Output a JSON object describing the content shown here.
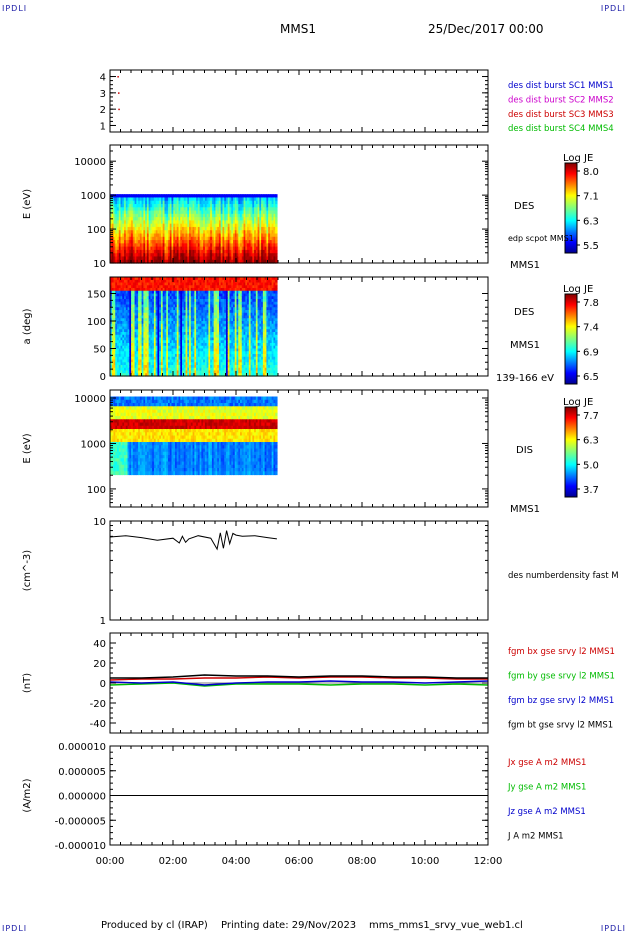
{
  "header": {
    "corner_labels": [
      "IPDLI",
      "IPDLI",
      "IPDLI",
      "IPDLI"
    ],
    "title": "MMS1",
    "date": "25/Dec/2017 00:00"
  },
  "footer": {
    "produced_by": "Produced by cl (IRAP)",
    "printing_date": "Printing date: 29/Nov/2023",
    "file": "mms_mms1_srvy_vue_web1.cl"
  },
  "time_axis": {
    "ticks": [
      "00:00",
      "02:00",
      "04:00",
      "06:00",
      "08:00",
      "10:00",
      "12:00"
    ],
    "range_hours": [
      0,
      12
    ]
  },
  "chart_data": [
    {
      "type": "scatter",
      "panel": "spacecraft",
      "yticks": [
        "1",
        "2",
        "3",
        "4"
      ],
      "ylim": [
        0.6,
        4.4
      ],
      "legend": [
        {
          "label": "des dist burst SC1 MMS1",
          "color": "#0000cc"
        },
        {
          "label": "des dist burst SC2 MMS2",
          "color": "#cc00cc"
        },
        {
          "label": "des dist burst SC3 MMS3",
          "color": "#cc0000"
        },
        {
          "label": "des dist burst SC4 MMS4",
          "color": "#00bb00"
        }
      ],
      "points": [
        {
          "x": 0.25,
          "y": 4
        },
        {
          "x": 0.27,
          "y": 3
        },
        {
          "x": 0.28,
          "y": 2
        }
      ]
    },
    {
      "type": "heatmap",
      "panel": "des-energy",
      "ylabel": "E (eV)",
      "yscale": "log",
      "yticks": [
        "10",
        "100",
        "1000",
        "10000"
      ],
      "ylim": [
        10,
        30000
      ],
      "data_end_hours": 5.3,
      "colorbar": {
        "title": "Log JE",
        "ticks": [
          "8.0",
          "7.1",
          "6.3",
          "5.5"
        ]
      },
      "labels": [
        "DES",
        "edp scpot MMS1",
        "MMS1"
      ]
    },
    {
      "type": "heatmap",
      "panel": "des-pitch",
      "ylabel": "a (deg)",
      "yticks": [
        "0",
        "50",
        "100",
        "150"
      ],
      "ylim": [
        0,
        180
      ],
      "data_end_hours": 5.3,
      "colorbar": {
        "title": "Log JE",
        "ticks": [
          "7.8",
          "7.4",
          "6.9",
          "6.5"
        ]
      },
      "labels": [
        "DES",
        "MMS1",
        "139-166 eV"
      ]
    },
    {
      "type": "heatmap",
      "panel": "dis-energy",
      "ylabel": "E (eV)",
      "yscale": "log",
      "yticks": [
        "100",
        "1000",
        "10000"
      ],
      "ylim": [
        40,
        15000
      ],
      "data_end_hours": 5.3,
      "colorbar": {
        "title": "Log JE",
        "ticks": [
          "7.7",
          "6.3",
          "5.0",
          "3.7"
        ]
      },
      "labels": [
        "DIS",
        "MMS1"
      ]
    },
    {
      "type": "line",
      "panel": "density",
      "ylabel": "(cm^-3)",
      "yscale": "log",
      "yticks": [
        "1",
        "10"
      ],
      "ylim": [
        1,
        10
      ],
      "series": [
        {
          "name": "des numberdensity fast M",
          "color": "#000000",
          "x": [
            0,
            0.5,
            1,
            1.5,
            2,
            2.2,
            2.3,
            2.4,
            2.5,
            2.8,
            3.2,
            3.4,
            3.5,
            3.6,
            3.7,
            3.8,
            3.9,
            4,
            4.2,
            4.6,
            5,
            5.3
          ],
          "values": [
            6.9,
            7.1,
            6.8,
            6.4,
            6.7,
            6.0,
            7.0,
            6.1,
            6.6,
            7.1,
            6.7,
            5.2,
            7.6,
            5.3,
            8.0,
            5.9,
            7.5,
            7.2,
            7.0,
            7.1,
            6.8,
            6.6
          ]
        }
      ]
    },
    {
      "type": "line",
      "panel": "magnetic-field",
      "ylabel": "(nT)",
      "yticks": [
        "-40",
        "-20",
        "0",
        "20",
        "40"
      ],
      "ylim": [
        -50,
        50
      ],
      "series": [
        {
          "name": "fgm bx gse srvy l2 MMS1",
          "color": "#cc0000",
          "x": [
            0,
            1,
            2,
            3,
            4,
            5,
            6,
            7,
            8,
            9,
            10,
            11,
            12
          ],
          "values": [
            3,
            4,
            4,
            5,
            5,
            6,
            5,
            6,
            6,
            5,
            5,
            4,
            4
          ]
        },
        {
          "name": "fgm by gse srvy l2 MMS1",
          "color": "#00bb00",
          "x": [
            0,
            1,
            2,
            3,
            4,
            5,
            6,
            7,
            8,
            9,
            10,
            11,
            12
          ],
          "values": [
            -2,
            -1,
            0,
            -3,
            -1,
            -1,
            -1,
            -2,
            -1,
            -1,
            -2,
            -1,
            -2
          ]
        },
        {
          "name": "fgm bz gse srvy l2 MMS1",
          "color": "#0000cc",
          "x": [
            0,
            1,
            2,
            3,
            4,
            5,
            6,
            7,
            8,
            9,
            10,
            11,
            12
          ],
          "values": [
            1,
            0,
            1,
            -2,
            0,
            1,
            1,
            2,
            1,
            1,
            0,
            1,
            2
          ]
        },
        {
          "name": "fgm bt gse srvy l2 MMS1",
          "color": "#000000",
          "x": [
            0,
            1,
            2,
            3,
            4,
            5,
            6,
            7,
            8,
            9,
            10,
            11,
            12
          ],
          "values": [
            5,
            5,
            6,
            8,
            7,
            7,
            6,
            7,
            7,
            6,
            6,
            5,
            5
          ]
        }
      ]
    },
    {
      "type": "line",
      "panel": "current-density",
      "ylabel": "(A/m2)",
      "yticks": [
        "-0.000010",
        "-0.000005",
        "0.000000",
        "0.000005",
        "0.000010"
      ],
      "ylim": [
        -1e-05,
        1e-05
      ],
      "series": [
        {
          "name": "Jx gse A m2 MMS1",
          "color": "#cc0000",
          "x": [],
          "values": []
        },
        {
          "name": "Jy gse A m2 MMS1",
          "color": "#00bb00",
          "x": [],
          "values": []
        },
        {
          "name": "Jz gse A m2 MMS1",
          "color": "#0000cc",
          "x": [],
          "values": []
        },
        {
          "name": "J A m2 MMS1",
          "color": "#000000",
          "x": [
            0,
            2,
            4,
            6,
            8,
            10,
            12
          ],
          "values": [
            0,
            0,
            0,
            0,
            0,
            0,
            0
          ]
        }
      ]
    }
  ]
}
